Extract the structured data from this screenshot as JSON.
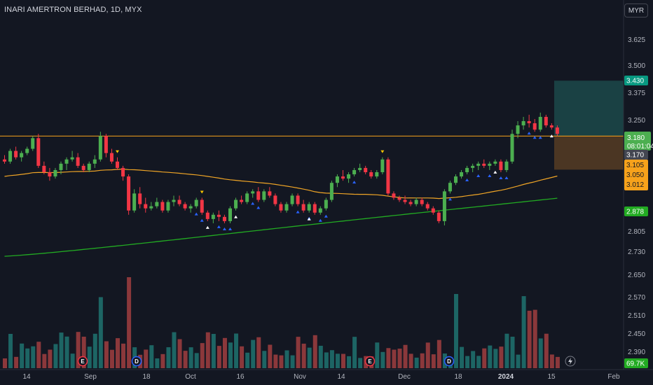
{
  "header": {
    "title": "INARI AMERTRON BERHAD, 1D, MYX",
    "currency": "MYR"
  },
  "price_tags": {
    "target": "3.430",
    "last_price": "3.180",
    "countdown": "08:01:04",
    "level_line": "3.170",
    "stop1": "3.105",
    "stop2": "3.050",
    "stop3": "3.012",
    "ma_long": "2.878",
    "volume": "69.7K"
  },
  "colors": {
    "background": "#131722",
    "up": "#26a69a",
    "down": "#ef5350",
    "candle_up": "#4caf50",
    "candle_down": "#f23645",
    "ma_fast": "#f0a526",
    "ma_slow": "#22ab22",
    "level_line": "#f7a21b",
    "target_zone": "#1d5050",
    "stop_zone": "#5a3f24",
    "earnings": "#f23645",
    "dividend": "#2962ff"
  },
  "events": {
    "earnings_label": "E",
    "dividend_label": "D"
  },
  "chart_data": {
    "type": "candlestick",
    "title": "INARI AMERTRON BERHAD, 1D, MYX",
    "y_ticks": [
      "3.625",
      "3.500",
      "3.375",
      "3.250",
      "2.805",
      "2.730",
      "2.650",
      "2.570",
      "2.510",
      "2.450",
      "2.390"
    ],
    "x_ticks": [
      "14",
      "Sep",
      "18",
      "Oct",
      "16",
      "Nov",
      "14",
      "Dec",
      "18",
      "2024",
      "15",
      "Feb"
    ],
    "horizontal_level": 3.17,
    "long_position": {
      "entry": 3.17,
      "target": 3.43,
      "stop": 3.012
    },
    "last_price": 3.18,
    "candles": [
      [
        3.06,
        3.08,
        3.04,
        3.05
      ],
      [
        3.05,
        3.11,
        3.04,
        3.1
      ],
      [
        3.1,
        3.12,
        3.06,
        3.07
      ],
      [
        3.07,
        3.1,
        3.05,
        3.09
      ],
      [
        3.09,
        3.12,
        3.08,
        3.11
      ],
      [
        3.11,
        3.17,
        3.1,
        3.16
      ],
      [
        3.16,
        3.18,
        3.02,
        3.03
      ],
      [
        3.03,
        3.05,
        2.99,
        3.0
      ],
      [
        3.0,
        3.02,
        2.96,
        2.98
      ],
      [
        2.98,
        3.02,
        2.97,
        3.01
      ],
      [
        3.01,
        3.05,
        2.99,
        3.04
      ],
      [
        3.04,
        3.07,
        3.01,
        3.06
      ],
      [
        3.06,
        3.1,
        3.05,
        3.07
      ],
      [
        3.07,
        3.09,
        3.02,
        3.03
      ],
      [
        3.03,
        3.04,
        3.0,
        3.01
      ],
      [
        3.01,
        3.05,
        3.0,
        3.04
      ],
      [
        3.04,
        3.08,
        3.02,
        3.06
      ],
      [
        3.06,
        3.19,
        3.05,
        3.17
      ],
      [
        3.17,
        3.18,
        3.07,
        3.09
      ],
      [
        3.09,
        3.11,
        3.04,
        3.05
      ],
      [
        3.05,
        3.07,
        3.01,
        3.02
      ],
      [
        3.02,
        3.03,
        2.96,
        2.98
      ],
      [
        2.98,
        2.99,
        2.8,
        2.82
      ],
      [
        2.82,
        2.92,
        2.81,
        2.9
      ],
      [
        2.9,
        2.93,
        2.83,
        2.85
      ],
      [
        2.85,
        2.88,
        2.81,
        2.83
      ],
      [
        2.83,
        2.86,
        2.82,
        2.84
      ],
      [
        2.84,
        2.88,
        2.83,
        2.86
      ],
      [
        2.86,
        2.87,
        2.81,
        2.82
      ],
      [
        2.82,
        2.87,
        2.81,
        2.86
      ],
      [
        2.86,
        2.89,
        2.84,
        2.87
      ],
      [
        2.87,
        2.89,
        2.84,
        2.85
      ],
      [
        2.85,
        2.86,
        2.82,
        2.83
      ],
      [
        2.83,
        2.85,
        2.81,
        2.84
      ],
      [
        2.84,
        2.88,
        2.83,
        2.87
      ],
      [
        2.87,
        2.88,
        2.8,
        2.81
      ],
      [
        2.81,
        2.82,
        2.77,
        2.78
      ],
      [
        2.78,
        2.81,
        2.76,
        2.8
      ],
      [
        2.8,
        2.82,
        2.77,
        2.79
      ],
      [
        2.79,
        2.8,
        2.76,
        2.77
      ],
      [
        2.77,
        2.84,
        2.76,
        2.83
      ],
      [
        2.83,
        2.88,
        2.82,
        2.87
      ],
      [
        2.87,
        2.89,
        2.85,
        2.86
      ],
      [
        2.86,
        2.91,
        2.85,
        2.9
      ],
      [
        2.9,
        2.92,
        2.88,
        2.91
      ],
      [
        2.91,
        2.93,
        2.86,
        2.87
      ],
      [
        2.87,
        2.92,
        2.86,
        2.91
      ],
      [
        2.91,
        2.93,
        2.88,
        2.89
      ],
      [
        2.89,
        2.9,
        2.84,
        2.85
      ],
      [
        2.85,
        2.86,
        2.81,
        2.82
      ],
      [
        2.82,
        2.86,
        2.81,
        2.85
      ],
      [
        2.85,
        2.9,
        2.84,
        2.89
      ],
      [
        2.89,
        2.9,
        2.84,
        2.85
      ],
      [
        2.85,
        2.87,
        2.81,
        2.82
      ],
      [
        2.82,
        2.86,
        2.81,
        2.85
      ],
      [
        2.85,
        2.86,
        2.8,
        2.81
      ],
      [
        2.81,
        2.84,
        2.8,
        2.83
      ],
      [
        2.83,
        2.88,
        2.82,
        2.87
      ],
      [
        2.87,
        2.96,
        2.86,
        2.95
      ],
      [
        2.95,
        2.99,
        2.93,
        2.98
      ],
      [
        2.98,
        3.01,
        2.96,
        2.97
      ],
      [
        2.97,
        3.0,
        2.95,
        2.99
      ],
      [
        2.99,
        3.02,
        2.98,
        3.01
      ],
      [
        3.01,
        3.04,
        3.0,
        3.02
      ],
      [
        3.02,
        3.03,
        2.99,
        3.0
      ],
      [
        3.0,
        3.01,
        2.97,
        2.98
      ],
      [
        2.98,
        3.01,
        2.97,
        3.0
      ],
      [
        3.0,
        3.07,
        2.99,
        3.06
      ],
      [
        3.06,
        3.07,
        2.89,
        2.9
      ],
      [
        2.9,
        2.91,
        2.87,
        2.88
      ],
      [
        2.88,
        2.89,
        2.86,
        2.87
      ],
      [
        2.87,
        2.89,
        2.85,
        2.86
      ],
      [
        2.86,
        2.87,
        2.84,
        2.85
      ],
      [
        2.85,
        2.88,
        2.84,
        2.87
      ],
      [
        2.87,
        2.88,
        2.84,
        2.85
      ],
      [
        2.85,
        2.86,
        2.82,
        2.83
      ],
      [
        2.83,
        2.84,
        2.8,
        2.81
      ],
      [
        2.81,
        2.82,
        2.76,
        2.77
      ],
      [
        2.77,
        2.92,
        2.75,
        2.91
      ],
      [
        2.91,
        2.96,
        2.9,
        2.95
      ],
      [
        2.95,
        2.99,
        2.94,
        2.98
      ],
      [
        2.98,
        3.01,
        2.97,
        3.0
      ],
      [
        3.0,
        3.03,
        2.99,
        3.02
      ],
      [
        3.02,
        3.04,
        3.0,
        3.03
      ],
      [
        3.03,
        3.05,
        3.01,
        3.04
      ],
      [
        3.04,
        3.06,
        3.02,
        3.03
      ],
      [
        3.03,
        3.05,
        3.01,
        3.04
      ],
      [
        3.04,
        3.06,
        3.03,
        3.05
      ],
      [
        3.05,
        3.06,
        3.0,
        3.01
      ],
      [
        3.01,
        3.06,
        3.0,
        3.05
      ],
      [
        3.05,
        3.2,
        3.04,
        3.18
      ],
      [
        3.18,
        3.24,
        3.16,
        3.22
      ],
      [
        3.22,
        3.26,
        3.2,
        3.24
      ],
      [
        3.24,
        3.27,
        3.21,
        3.23
      ],
      [
        3.23,
        3.25,
        3.19,
        3.2
      ],
      [
        3.2,
        3.28,
        3.19,
        3.26
      ],
      [
        3.26,
        3.27,
        3.21,
        3.22
      ],
      [
        3.22,
        3.23,
        3.2,
        3.21
      ],
      [
        3.21,
        3.22,
        3.17,
        3.18
      ]
    ]
  }
}
